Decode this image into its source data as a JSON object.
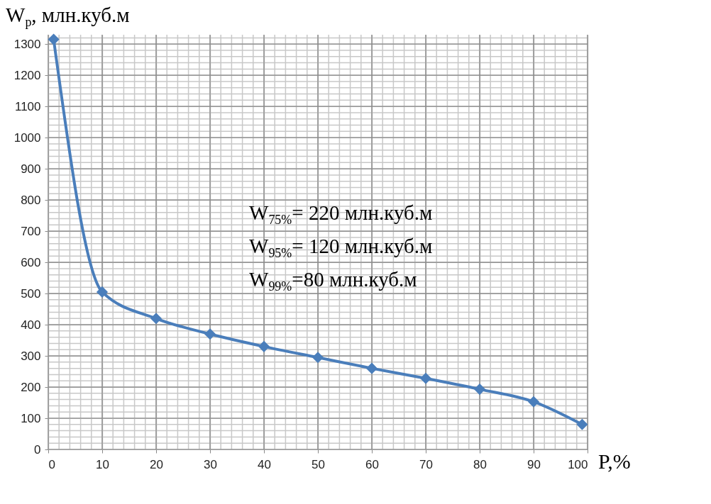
{
  "chart_data": {
    "type": "line",
    "ylabel": "W$_{p}$, млн.куб.м",
    "xlabel": "P,%",
    "x": [
      1,
      10,
      20,
      30,
      40,
      50,
      60,
      70,
      80,
      90,
      99
    ],
    "series": [
      {
        "color": "#4a7ebb",
        "values": [
          1315,
          505,
          420,
          370,
          330,
          295,
          260,
          228,
          193,
          153,
          80
        ]
      }
    ],
    "xlim": [
      0,
      100
    ],
    "xticks": [
      0,
      10,
      20,
      30,
      40,
      50,
      60,
      70,
      80,
      90,
      100
    ],
    "ylim": [
      0,
      1330
    ],
    "yticks": [
      0,
      100,
      200,
      300,
      400,
      500,
      600,
      700,
      800,
      900,
      1000,
      1100,
      1200,
      1300
    ],
    "grid": true,
    "marker": "diamond",
    "line_style": "solid",
    "annotations": [
      "W$_{75%}$= 220  млн.куб.м",
      "W$_{95%}$= 120  млн.куб.м",
      "W$_{99%}$=80 млн.куб.м"
    ]
  }
}
